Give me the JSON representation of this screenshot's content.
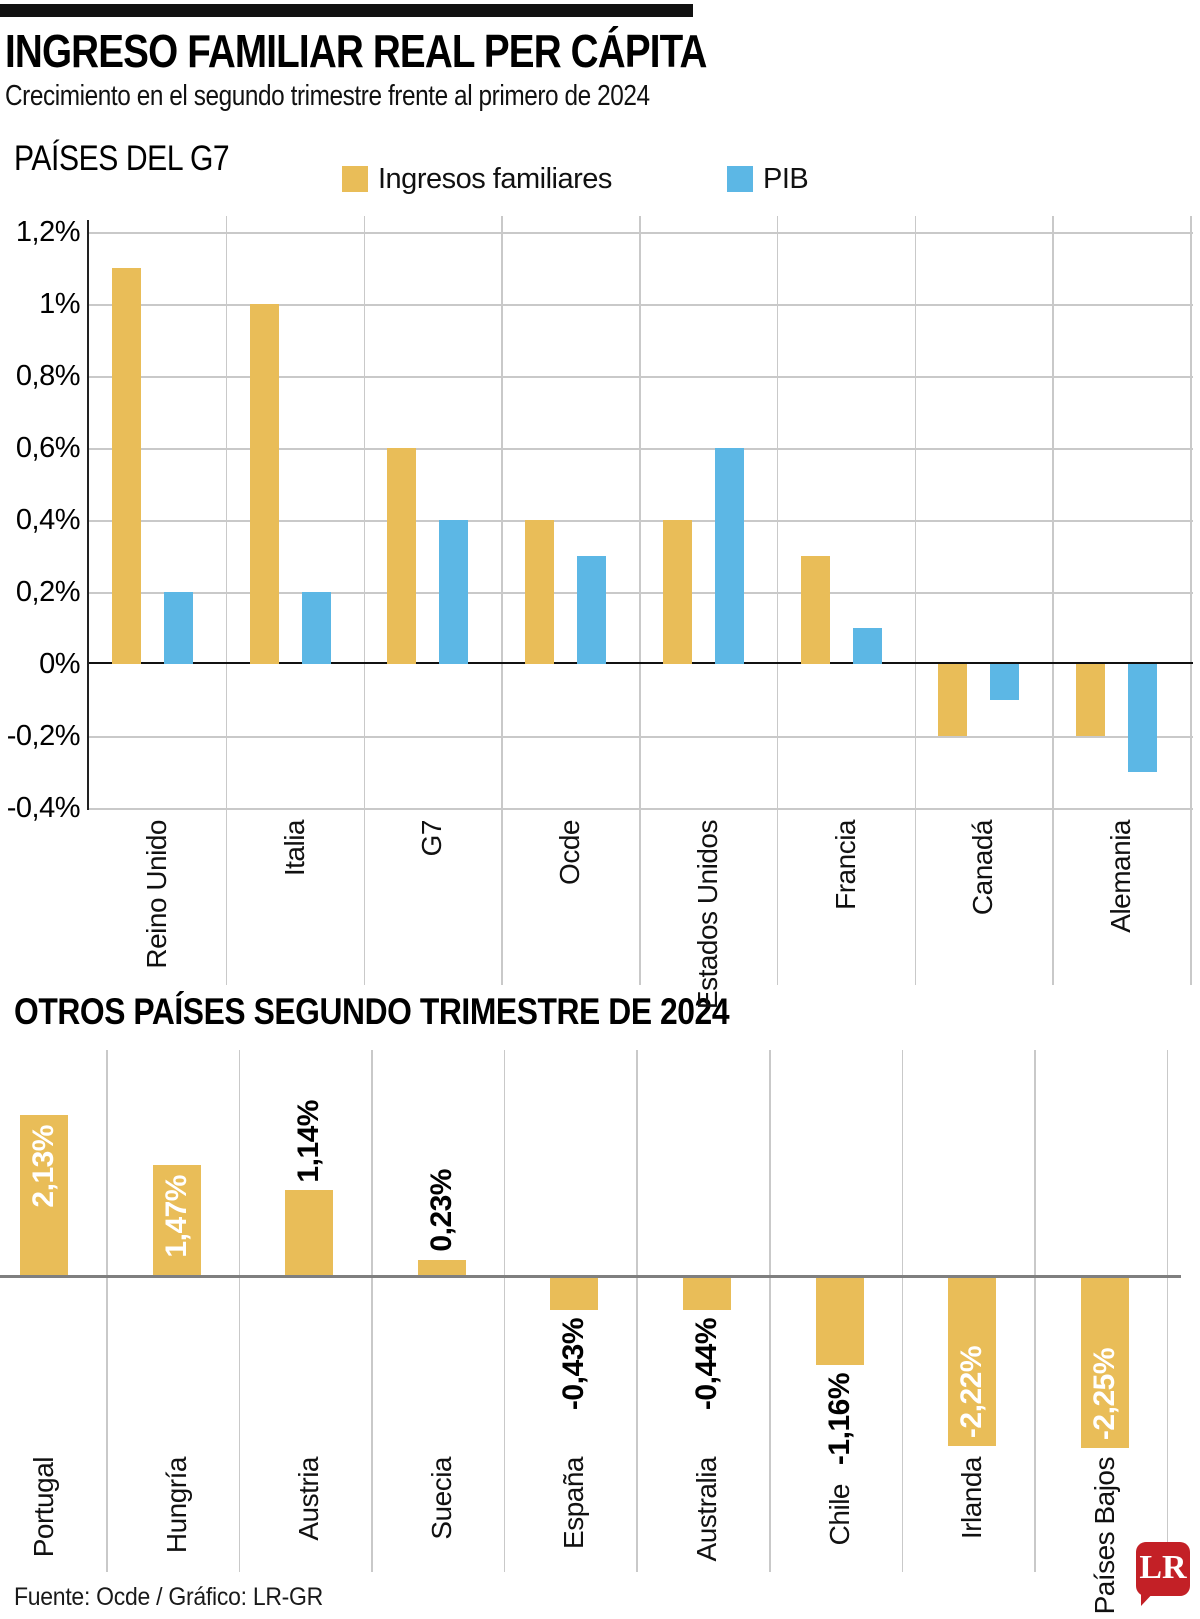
{
  "header": {
    "title": "INGRESO FAMILIAR REAL PER CÁPITA",
    "subtitle": "Crecimiento en el segundo trimestre frente al primero de 2024"
  },
  "colors": {
    "accent_gold": "#e9bd58",
    "accent_blue": "#5cb7e5",
    "gridline": "#c9c9c9",
    "zero_axis_dark": "#111111",
    "zero_axis_gray": "#7f7f7f",
    "logo_red": "#c32026"
  },
  "chart_data": [
    {
      "type": "bar",
      "section_title": "PAÍSES DEL G7",
      "legend_position": "top",
      "grid": true,
      "categories": [
        "Reino Unido",
        "Italia",
        "G7",
        "Ocde",
        "Estados Unidos",
        "Francia",
        "Canadá",
        "Alemania"
      ],
      "series": [
        {
          "name": "Ingresos familiares",
          "color": "#e9bd58",
          "values": [
            1.1,
            1.0,
            0.6,
            0.4,
            0.4,
            0.3,
            -0.2,
            -0.2
          ]
        },
        {
          "name": "PIB",
          "color": "#5cb7e5",
          "values": [
            0.2,
            0.2,
            0.4,
            0.3,
            0.6,
            0.1,
            -0.1,
            -0.3
          ]
        }
      ],
      "ylim": [
        -0.4,
        1.2
      ],
      "yticks": [
        {
          "label": "1,2%",
          "value": 1.2
        },
        {
          "label": "1%",
          "value": 1.0
        },
        {
          "label": "0,8%",
          "value": 0.8
        },
        {
          "label": "0,6%",
          "value": 0.6
        },
        {
          "label": "0,4%",
          "value": 0.4
        },
        {
          "label": "0,2%",
          "value": 0.2
        },
        {
          "label": "0%",
          "value": 0.0
        },
        {
          "label": "-0,2%",
          "value": -0.2
        },
        {
          "label": "-0,4%",
          "value": -0.4
        }
      ]
    },
    {
      "type": "bar",
      "title": "OTROS PAÍSES SEGUNDO TRIMESTRE DE 2024",
      "bar_color": "#e9bd58",
      "grid": true,
      "items": [
        {
          "label": "Portugal",
          "value": 2.13,
          "display": "2,13%",
          "value_label_style": "white-inside"
        },
        {
          "label": "Hungría",
          "value": 1.47,
          "display": "1,47%",
          "value_label_style": "white-inside"
        },
        {
          "label": "Austria",
          "value": 1.14,
          "display": "1,14%",
          "value_label_style": "black-above"
        },
        {
          "label": "Suecia",
          "value": 0.23,
          "display": "0,23%",
          "value_label_style": "black-above"
        },
        {
          "label": "España",
          "value": -0.43,
          "display": "-0,43%",
          "value_label_style": "black-below"
        },
        {
          "label": "Australia",
          "value": -0.44,
          "display": "-0,44%",
          "value_label_style": "black-below"
        },
        {
          "label": "Chile",
          "value": -1.16,
          "display": "-1,16%",
          "value_label_style": "black-below"
        },
        {
          "label": "Irlanda",
          "value": -2.22,
          "display": "-2,22%",
          "value_label_style": "white-inside"
        },
        {
          "label": "Países Bajos",
          "value": -2.25,
          "display": "-2,25%",
          "value_label_style": "white-inside"
        }
      ]
    }
  ],
  "footer": {
    "source": "Fuente: Ocde / Gráfico: LR-GR",
    "logo": "LR"
  }
}
